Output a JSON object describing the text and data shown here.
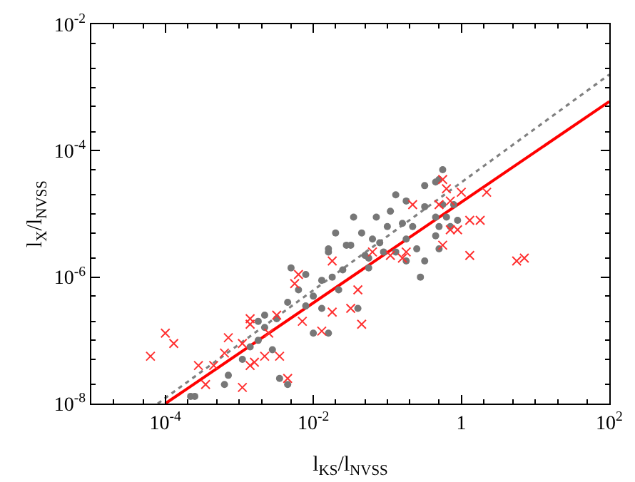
{
  "chart_data": {
    "type": "scatter",
    "xlabel": "l$_{KS}$/l$_{NVSS}$",
    "ylabel": "l$_{X}$/l$_{NVSS}$",
    "log": "xy",
    "grid": false,
    "legend": false,
    "xlim": [
      1e-05,
      100
    ],
    "ylim": [
      1e-08,
      0.01
    ],
    "xticks": [
      {
        "value": 0.0001,
        "label": "10$^{-4}$"
      },
      {
        "value": 0.01,
        "label": "10$^{-2}$"
      },
      1,
      {
        "value": 100,
        "label": "10$^{2}$"
      }
    ],
    "yticks": [
      {
        "value": 1e-08,
        "label": "10$^{-8}$"
      },
      {
        "value": 1e-06,
        "label": "10$^{-6}$"
      },
      {
        "value": 0.0001,
        "label": "10$^{-4}$"
      },
      {
        "value": 0.01,
        "label": "10$^{-2}$"
      }
    ],
    "series": [
      {
        "type": "line",
        "color": "#808080",
        "line_style": "dotted",
        "marker": "none",
        "x": [
          7.9e-05,
          100
        ],
        "values": [
          1e-08,
          0.0016
        ]
      },
      {
        "color": "#777777",
        "marker": "circle",
        "x": [
          0.0018,
          0.0022,
          0.00063,
          0.00025,
          0.0035,
          0.0011,
          0.00071,
          0.0014,
          0.00022,
          0.0045,
          0.016,
          0.032,
          0.05,
          0.018,
          0.013,
          0.005,
          0.0079,
          0.0045,
          0.0079,
          0.013,
          0.016,
          0.01,
          0.0032,
          0.0022,
          0.0028,
          0.0018,
          0.18,
          0.25,
          0.04,
          0.022,
          0.32,
          0.45,
          0.18,
          0.11,
          0.071,
          0.045,
          0.16,
          0.22,
          0.079,
          0.028,
          0.016,
          0.13,
          0.18,
          0.056,
          0.32,
          0.5,
          0.28,
          0.71,
          0.056,
          0.5,
          0.32,
          0.56,
          0.79,
          0.45,
          0.63,
          0.89,
          0.5,
          0.45,
          0.56,
          0.1,
          0.063,
          0.025,
          0.01,
          0.0063,
          0.035,
          0.13,
          0.089,
          0.02
        ],
        "values": [
          2e-07,
          2.5e-07,
          2e-08,
          1.3e-08,
          2.5e-08,
          5e-08,
          2.8e-08,
          7.9e-08,
          1.3e-08,
          2e-08,
          2.8e-06,
          3.2e-06,
          2.2e-06,
          1e-06,
          8.9e-07,
          1.4e-06,
          1.1e-06,
          4e-07,
          3.5e-07,
          3.2e-07,
          1.3e-07,
          1.3e-07,
          2.2e-07,
          1.6e-07,
          7.1e-08,
          1e-07,
          1.8e-06,
          2.8e-06,
          3.2e-07,
          6.3e-07,
          2.8e-05,
          3.2e-05,
          1.6e-05,
          1.1e-05,
          8.9e-06,
          5e-06,
          7.1e-06,
          6.3e-06,
          3.5e-06,
          3.2e-06,
          2.5e-06,
          2.5e-06,
          4e-06,
          2e-06,
          1.8e-06,
          2.8e-06,
          1e-06,
          6.3e-06,
          1.4e-06,
          3.5e-05,
          1.3e-05,
          1.4e-05,
          1.4e-05,
          8.9e-06,
          8.9e-06,
          7.9e-06,
          6.3e-06,
          4.5e-06,
          5e-05,
          6.3e-06,
          4e-06,
          1.3e-06,
          5e-07,
          6.3e-07,
          8.9e-06,
          2e-05,
          2.5e-06,
          5e-06
        ]
      },
      {
        "color": "#ff3030",
        "marker": "cross",
        "x": [
          0.0014,
          0.0032,
          0.00071,
          0.00063,
          0.00028,
          0.00045,
          0.0011,
          0.00035,
          0.0011,
          0.0022,
          0.0014,
          0.0045,
          0.0063,
          0.0056,
          0.018,
          0.063,
          0.045,
          0.032,
          0.018,
          0.013,
          0.0071,
          0.0035,
          0.0025,
          0.0014,
          0.0016,
          0.04,
          0.16,
          0.56,
          0.63,
          1.0,
          0.22,
          0.5,
          1.3,
          0.89,
          0.56,
          1.3,
          0.18,
          0.11,
          2.2,
          0.71,
          1.8,
          0.71,
          6.3e-05,
          0.0001,
          0.00013,
          5.6,
          7.1
        ],
        "values": [
          2.2e-07,
          2.5e-07,
          1.1e-07,
          6.3e-08,
          4e-08,
          4e-08,
          8.9e-08,
          2e-08,
          1.8e-08,
          5.6e-08,
          4e-08,
          2.5e-08,
          1.1e-06,
          7.9e-07,
          1.8e-06,
          2.5e-06,
          1.8e-07,
          3.2e-07,
          2.8e-07,
          1.4e-07,
          2e-07,
          5.6e-08,
          1.3e-07,
          1.8e-07,
          4.5e-08,
          6.3e-07,
          2e-06,
          3.5e-05,
          2.5e-05,
          2.2e-05,
          1.4e-05,
          1.4e-05,
          7.9e-06,
          5.6e-06,
          3.2e-06,
          2.2e-06,
          2.5e-06,
          2.2e-06,
          2.2e-05,
          1.6e-05,
          7.9e-06,
          5.6e-06,
          5.6e-08,
          1.3e-07,
          8.9e-08,
          1.8e-06,
          2e-06
        ]
      },
      {
        "type": "line",
        "color": "#ff0000",
        "line_style": "solid",
        "marker": "none",
        "x": [
          0.0001,
          100
        ],
        "values": [
          1e-08,
          0.0006
        ]
      }
    ]
  }
}
